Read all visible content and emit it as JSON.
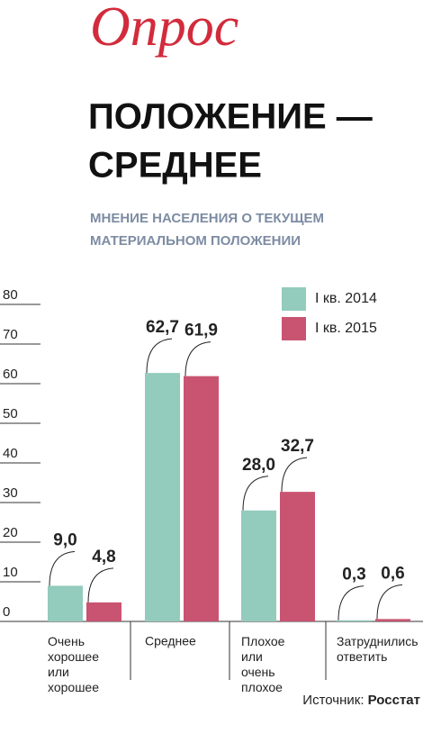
{
  "chart_data": {
    "type": "bar",
    "logo": "Опрос",
    "title": [
      "ПОЛОЖЕНИЕ —",
      "СРЕДНЕЕ"
    ],
    "subtitle": [
      "МНЕНИЕ НАСЕЛЕНИЯ О ТЕКУЩЕМ",
      "МАТЕРИАЛЬНОМ ПОЛОЖЕНИИ"
    ],
    "categories": [
      "Очень хорошее или хорошее",
      "Среднее",
      "Плохое или очень плохое",
      "Затруднились ответить"
    ],
    "series": [
      {
        "name": "I кв. 2014",
        "color": "#93cbbd",
        "values": [
          9.0,
          62.7,
          28.0,
          0.3
        ],
        "value_labels": [
          "9,0",
          "62,7",
          "28,0",
          "0,3"
        ]
      },
      {
        "name": "I кв. 2015",
        "color": "#c95472",
        "values": [
          4.8,
          61.9,
          32.7,
          0.6
        ],
        "value_labels": [
          "4,8",
          "61,9",
          "32,7",
          "0,6"
        ]
      }
    ],
    "ylim": [
      0,
      80
    ],
    "yticks": [
      0,
      10,
      20,
      30,
      40,
      50,
      60,
      70,
      80
    ],
    "legend": "top-right",
    "source_label": "Источник:",
    "source": "Росстат"
  }
}
